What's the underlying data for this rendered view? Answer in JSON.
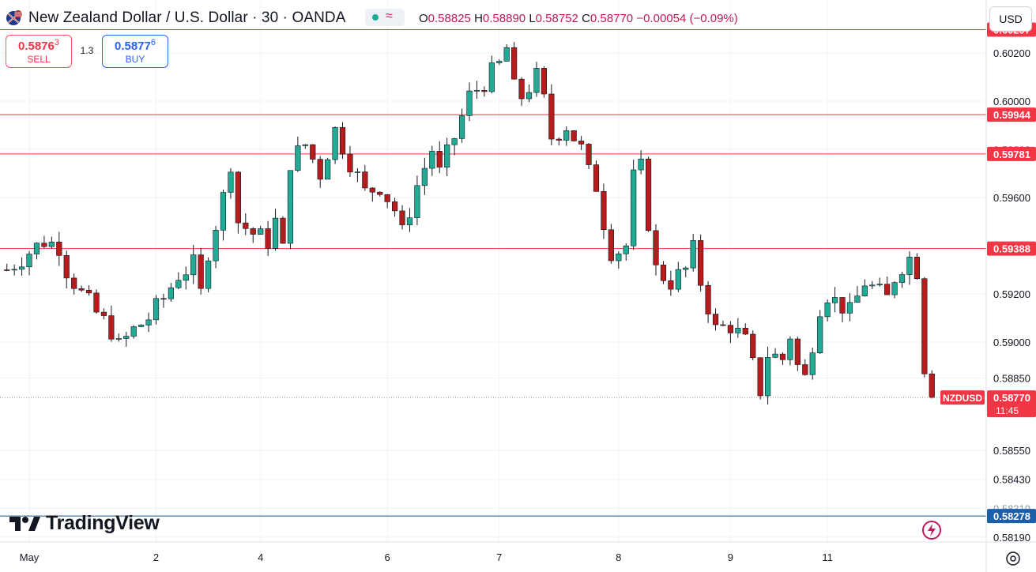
{
  "header": {
    "symbol_title": "New Zealand Dollar / U.S. Dollar · 30 · OANDA",
    "ohlc": {
      "open_label": "O",
      "open": "0.58825",
      "high_label": "H",
      "high": "0.58890",
      "low_label": "L",
      "low": "0.58752",
      "close_label": "C",
      "close": "0.58770",
      "change": "−0.00054 (−0.09%)"
    },
    "status_icon": "live-dot-icon",
    "indicator_icon": "wave-icon"
  },
  "trade": {
    "sell_price_main": "0.5876",
    "sell_price_sup": "3",
    "sell_label": "SELL",
    "spread": "1.3",
    "buy_price_main": "0.5877",
    "buy_price_sup": "6",
    "buy_label": "BUY"
  },
  "currency_button": "USD",
  "branding": {
    "logo_text": "TradingView"
  },
  "colors": {
    "up": "#089981",
    "down": "#f23645",
    "candle_up_fill": "#22ab94",
    "candle_down_fill": "#b71c1c",
    "level_line": "#f23645",
    "support_line": "#1c4d7a",
    "price_tag": "#f23645",
    "support_tag": "#1a5fa8"
  },
  "chart_data": {
    "type": "candlestick",
    "symbol": "NZDUSD",
    "timeframe": "30",
    "price_axis": {
      "min": 0.5817,
      "max": 0.6042,
      "tick_labels": [
        "0.60200",
        "0.60000",
        "0.59600",
        "0.59200",
        "0.59000",
        "0.58850",
        "0.58550",
        "0.58430",
        "0.58190"
      ],
      "partially_hidden_labels": [
        "0.59800",
        "0.58310"
      ]
    },
    "time_axis": {
      "labels": [
        {
          "text": "May",
          "bar": 3
        },
        {
          "text": "2",
          "bar": 20
        },
        {
          "text": "4",
          "bar": 34
        },
        {
          "text": "6",
          "bar": 51
        },
        {
          "text": "7",
          "bar": 66
        },
        {
          "text": "8",
          "bar": 82
        },
        {
          "text": "9",
          "bar": 97
        },
        {
          "text": "11",
          "bar": 110
        }
      ]
    },
    "horizontal_levels": [
      {
        "price": 0.60297,
        "label": "0.60297",
        "kind": "resistance"
      },
      {
        "price": 0.59944,
        "label": "0.59944",
        "kind": "resistance"
      },
      {
        "price": 0.59781,
        "label": "0.59781",
        "kind": "resistance"
      },
      {
        "price": 0.59388,
        "label": "0.59388",
        "kind": "resistance"
      },
      {
        "price": 0.58278,
        "label": "0.58278",
        "kind": "support"
      }
    ],
    "last_price": {
      "value": 0.5877,
      "label": "0.58770",
      "symbol_label": "NZDUSD",
      "countdown": "11:45"
    },
    "price_path": [
      [
        0,
        0.593
      ],
      [
        2,
        0.5935
      ],
      [
        5,
        0.5942
      ],
      [
        7,
        0.594
      ],
      [
        8,
        0.593
      ],
      [
        10,
        0.592
      ],
      [
        12,
        0.5912
      ],
      [
        14,
        0.5905
      ],
      [
        15,
        0.5898
      ],
      [
        17,
        0.5905
      ],
      [
        19,
        0.591
      ],
      [
        21,
        0.5918
      ],
      [
        23,
        0.5928
      ],
      [
        25,
        0.5932
      ],
      [
        26,
        0.592
      ],
      [
        27,
        0.5938
      ],
      [
        29,
        0.596
      ],
      [
        30,
        0.5975
      ],
      [
        31,
        0.595
      ],
      [
        33,
        0.5945
      ],
      [
        35,
        0.5942
      ],
      [
        36,
        0.595
      ],
      [
        37,
        0.5938
      ],
      [
        38,
        0.5975
      ],
      [
        40,
        0.5982
      ],
      [
        42,
        0.597
      ],
      [
        44,
        0.5988
      ],
      [
        46,
        0.5975
      ],
      [
        48,
        0.5962
      ],
      [
        50,
        0.5965
      ],
      [
        52,
        0.5955
      ],
      [
        53,
        0.5945
      ],
      [
        55,
        0.5965
      ],
      [
        57,
        0.598
      ],
      [
        58,
        0.597
      ],
      [
        60,
        0.5985
      ],
      [
        62,
        0.6002
      ],
      [
        64,
        0.6008
      ],
      [
        66,
        0.6015
      ],
      [
        67,
        0.6022
      ],
      [
        68,
        0.6005
      ],
      [
        69,
        0.6002
      ],
      [
        71,
        0.601
      ],
      [
        72,
        0.6
      ],
      [
        73,
        0.5985
      ],
      [
        75,
        0.599
      ],
      [
        77,
        0.598
      ],
      [
        78,
        0.597
      ],
      [
        79,
        0.5965
      ],
      [
        80,
        0.595
      ],
      [
        81,
        0.5938
      ],
      [
        82,
        0.5938
      ],
      [
        83,
        0.594
      ],
      [
        84,
        0.5968
      ],
      [
        85,
        0.5972
      ],
      [
        86,
        0.595
      ],
      [
        87,
        0.593
      ],
      [
        89,
        0.5925
      ],
      [
        91,
        0.593
      ],
      [
        92,
        0.5938
      ],
      [
        93,
        0.5925
      ],
      [
        94,
        0.5915
      ],
      [
        95,
        0.5905
      ],
      [
        97,
        0.5907
      ],
      [
        99,
        0.59
      ],
      [
        100,
        0.589
      ],
      [
        101,
        0.588
      ],
      [
        102,
        0.5895
      ],
      [
        104,
        0.5893
      ],
      [
        105,
        0.5903
      ],
      [
        106,
        0.589
      ],
      [
        107,
        0.5885
      ],
      [
        108,
        0.59
      ],
      [
        109,
        0.5915
      ],
      [
        110,
        0.592
      ],
      [
        111,
        0.5917
      ],
      [
        112,
        0.5915
      ],
      [
        113,
        0.5912
      ],
      [
        115,
        0.5925
      ],
      [
        117,
        0.592
      ],
      [
        118,
        0.5918
      ],
      [
        119,
        0.5927
      ],
      [
        120,
        0.5932
      ],
      [
        121,
        0.5935
      ],
      [
        122,
        0.593
      ],
      [
        123,
        0.589
      ],
      [
        124,
        0.5877
      ]
    ]
  }
}
